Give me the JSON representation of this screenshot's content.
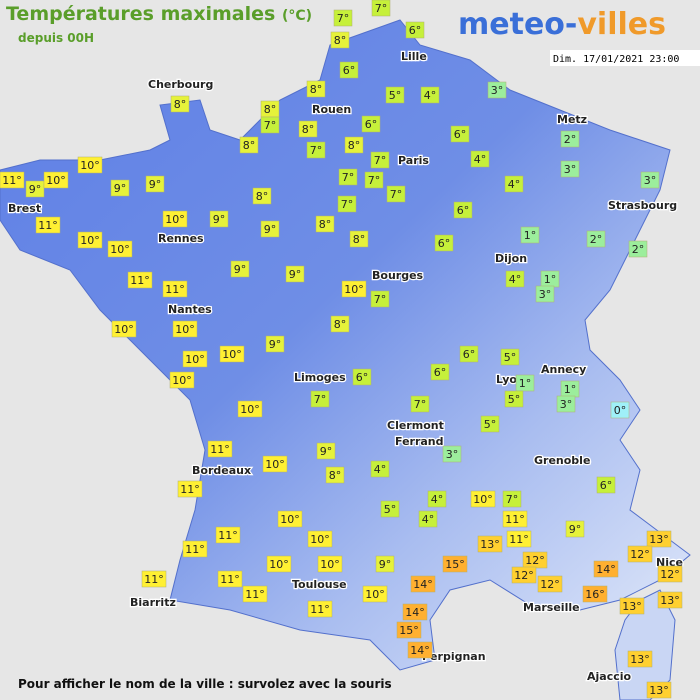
{
  "header": {
    "title": "Températures maximales",
    "unit": "(°C)",
    "subtitle": "depuis 00H",
    "logo_left": "meteo-",
    "logo_right": "villes",
    "date": "Dim. 17/01/2021 23:00"
  },
  "cities": [
    "Cherbourg",
    "Lille",
    "Rouen",
    "Metz",
    "Paris",
    "Strasbourg",
    "Brest",
    "Rennes",
    "Dijon",
    "Bourges",
    "Nantes",
    "Annecy",
    "Limoges",
    "Lyon",
    "Clermont",
    "Ferrand",
    "Grenoble",
    "Bordeaux",
    "Toulouse",
    "Marseille",
    "Nice",
    "Biarritz",
    "Perpignan",
    "Ajaccio"
  ],
  "temperatures": [
    "7°",
    "7°",
    "6°",
    "8°",
    "6°",
    "8°",
    "8°",
    "8°",
    "7°",
    "8°",
    "7°",
    "8°",
    "8°",
    "6°",
    "5°",
    "4°",
    "3°",
    "7°",
    "7°",
    "7°",
    "7°",
    "7°",
    "6°",
    "4°",
    "4°",
    "2°",
    "3°",
    "3°",
    "6°",
    "10°",
    "11°",
    "9°",
    "10°",
    "9°",
    "9°",
    "8°",
    "10°",
    "9°",
    "9°",
    "8°",
    "8°",
    "11°",
    "10°",
    "10°",
    "1°",
    "2°",
    "2°",
    "6°",
    "11°",
    "11°",
    "9°",
    "9°",
    "10°",
    "7°",
    "4°",
    "1°",
    "3°",
    "8°",
    "10°",
    "10°",
    "10°",
    "10°",
    "9°",
    "10°",
    "6°",
    "5°",
    "6°",
    "6°",
    "1°",
    "1°",
    "3°",
    "5°",
    "0°",
    "7°",
    "7°",
    "10°",
    "11°",
    "9°",
    "3°",
    "5°",
    "10°",
    "4°",
    "8°",
    "11°",
    "6°",
    "4°",
    "10°",
    "7°",
    "5°",
    "4°",
    "10°",
    "11°",
    "9°",
    "11°",
    "10°",
    "13°",
    "11°",
    "11°",
    "13°",
    "12°",
    "12°",
    "12°",
    "14°",
    "10°",
    "10°",
    "9°",
    "15°",
    "12°",
    "12°",
    "14°",
    "11°",
    "11°",
    "16°",
    "11°",
    "10°",
    "13°",
    "13°",
    "11°",
    "14°",
    "15°",
    "14°",
    "13°",
    "13°"
  ],
  "footer": "Pour afficher le nom de la ville : survolez avec la souris"
}
